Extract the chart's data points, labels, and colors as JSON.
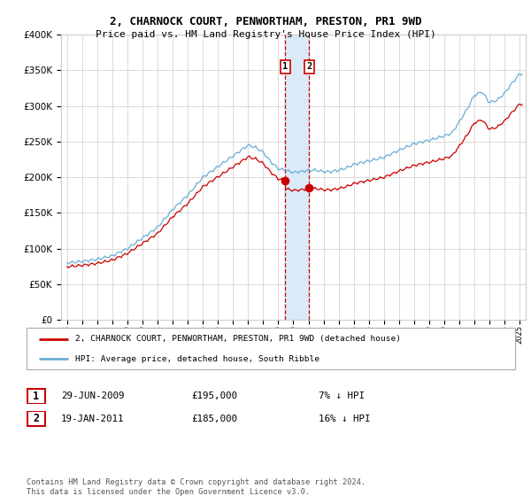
{
  "title": "2, CHARNOCK COURT, PENWORTHAM, PRESTON, PR1 9WD",
  "subtitle": "Price paid vs. HM Land Registry's House Price Index (HPI)",
  "legend_line1": "2, CHARNOCK COURT, PENWORTHAM, PRESTON, PR1 9WD (detached house)",
  "legend_line2": "HPI: Average price, detached house, South Ribble",
  "transaction1_date": "29-JUN-2009",
  "transaction1_price": "£195,000",
  "transaction1_hpi": "7% ↓ HPI",
  "transaction2_date": "19-JAN-2011",
  "transaction2_price": "£185,000",
  "transaction2_hpi": "16% ↓ HPI",
  "footer": "Contains HM Land Registry data © Crown copyright and database right 2024.\nThis data is licensed under the Open Government Licence v3.0.",
  "hpi_color": "#6baed6",
  "price_color": "#cc0000",
  "shading_color": "#daeaf7",
  "ylim": [
    0,
    400000
  ],
  "yticks": [
    0,
    50000,
    100000,
    150000,
    200000,
    250000,
    300000,
    350000,
    400000
  ],
  "t1": 2009.458,
  "t2": 2011.042,
  "price1": 195000,
  "price2": 185000
}
